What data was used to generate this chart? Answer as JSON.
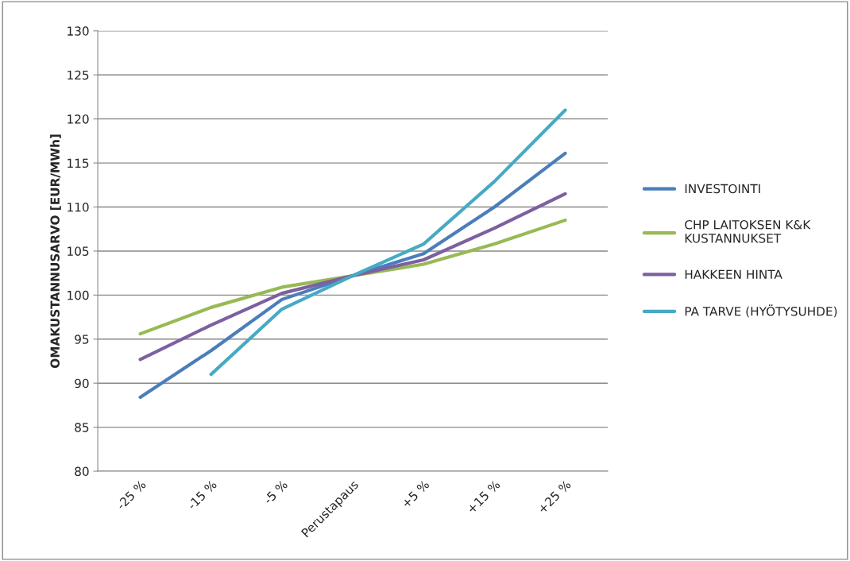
{
  "chart_data": {
    "type": "line",
    "ylabel": "OMAKUSTANNUSARVO [EUR/MWh]",
    "categories": [
      "-25 %",
      "-15 %",
      "-5 %",
      "Perustapaus",
      "+5 %",
      "+15 %",
      "+25 %"
    ],
    "series": [
      {
        "name": "INVESTOINTI",
        "color": "#4a7ebb",
        "values": [
          88.4,
          93.7,
          99.5,
          102.2,
          104.7,
          110.0,
          116.1
        ]
      },
      {
        "name": "CHP LAITOKSEN K&K\nKUSTANNUKSET",
        "color": "#98b954",
        "values": [
          95.6,
          98.6,
          100.9,
          102.2,
          103.5,
          105.8,
          108.5
        ]
      },
      {
        "name": "HAKKEEN HINTA",
        "color": "#7d60a0",
        "values": [
          92.7,
          96.6,
          100.2,
          102.2,
          104.0,
          107.6,
          111.5
        ]
      },
      {
        "name": "PA TARVE (HYÖTYSUHDE)",
        "color": "#46aac5",
        "values": [
          null,
          91.0,
          98.4,
          102.2,
          105.8,
          112.9,
          121.0
        ]
      }
    ],
    "ylim": [
      80,
      130
    ],
    "yticks": [
      80,
      85,
      90,
      95,
      100,
      105,
      110,
      115,
      120,
      125,
      130
    ],
    "grid": "y",
    "legend": "right",
    "marker": "none",
    "line_style": "solid"
  }
}
